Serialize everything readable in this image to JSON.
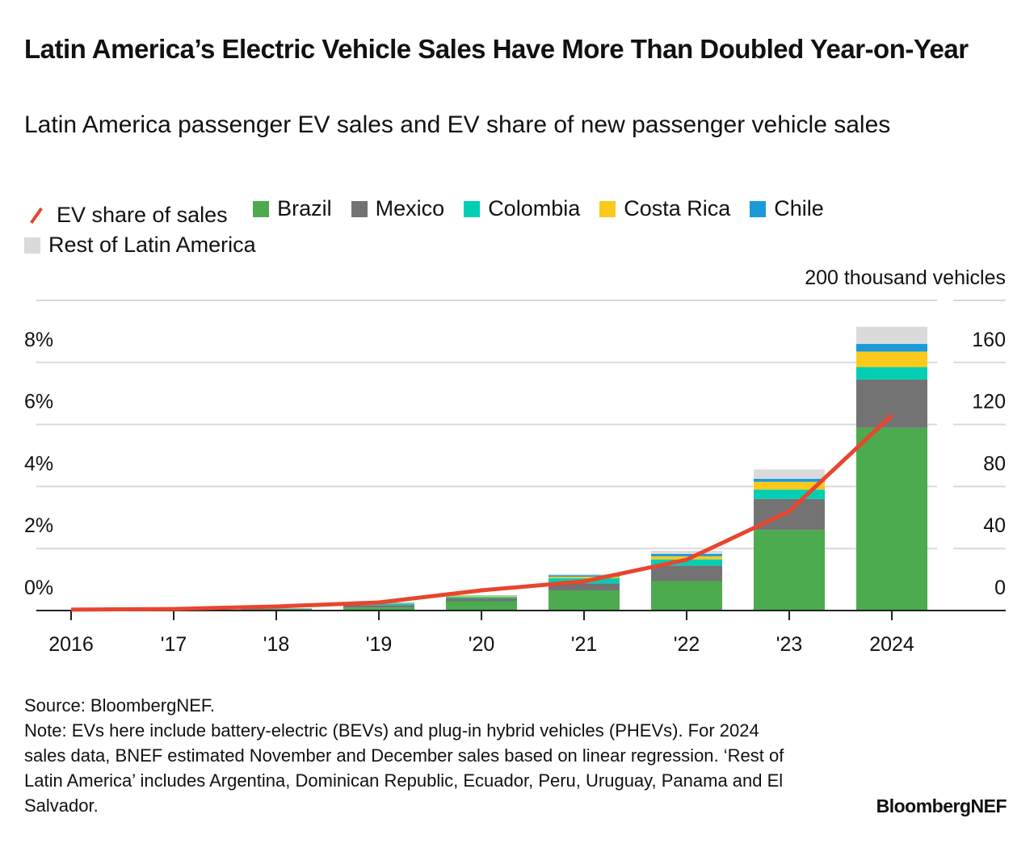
{
  "chart_data": {
    "type": "bar",
    "title": "Latin America’s Electric Vehicle Sales Have More Than Doubled Year-on-Year",
    "subtitle": "Latin America passenger EV sales and EV share of new passenger vehicle sales",
    "categories": [
      "2016",
      "'17",
      "'18",
      "'19",
      "'20",
      "'21",
      "'22",
      "'23",
      "2024"
    ],
    "right_axis": {
      "unit_label": "200 thousand vehicles",
      "ylim": [
        0,
        200
      ],
      "ticks": [
        "0",
        "40",
        "80",
        "120",
        "160"
      ]
    },
    "left_axis": {
      "ylim": [
        0,
        10
      ],
      "ticks": [
        "0%",
        "2%",
        "4%",
        "6%",
        "8%"
      ]
    },
    "series": [
      {
        "name": "Brazil",
        "color": "#4caa4f",
        "values": [
          0.1,
          0.2,
          0.8,
          2,
          6,
          13,
          19,
          52,
          118
        ]
      },
      {
        "name": "Mexico",
        "color": "#737373",
        "values": [
          0.1,
          0.1,
          0.4,
          1.5,
          1.8,
          4.5,
          10,
          20,
          31
        ]
      },
      {
        "name": "Colombia",
        "color": "#00cfb4",
        "values": [
          0,
          0,
          0.1,
          1,
          1,
          3.3,
          4,
          6,
          8
        ]
      },
      {
        "name": "Costa Rica",
        "color": "#fbc91b",
        "values": [
          0,
          0,
          0.1,
          0.3,
          0.8,
          1,
          2,
          5,
          10
        ]
      },
      {
        "name": "Chile",
        "color": "#1a9ad9",
        "values": [
          0,
          0,
          0.1,
          0.3,
          0.2,
          1,
          1.5,
          2,
          5
        ]
      },
      {
        "name": "Rest of Latin America",
        "color": "#dadada",
        "values": [
          0,
          0,
          0.1,
          0.1,
          0.2,
          0.7,
          2,
          6,
          11
        ]
      }
    ],
    "line": {
      "name": "EV share of sales",
      "color": "#e8452f",
      "unit": "%",
      "values": [
        0.03,
        0.05,
        0.13,
        0.26,
        0.65,
        0.94,
        1.64,
        3.2,
        6.3
      ]
    },
    "grid": true,
    "legend_position": "top"
  },
  "footer": {
    "source": "Source: BloombergNEF.",
    "note": "Note: EVs here include battery-electric (BEVs) and plug-in hybrid vehicles (PHEVs). For 2024 sales data, BNEF estimated November and December sales based on linear regression. ‘Rest of Latin America’ includes Argentina, Dominican Republic, Ecuador, Peru, Uruguay, Panama and El Salvador."
  },
  "brand": "BloombergNEF"
}
